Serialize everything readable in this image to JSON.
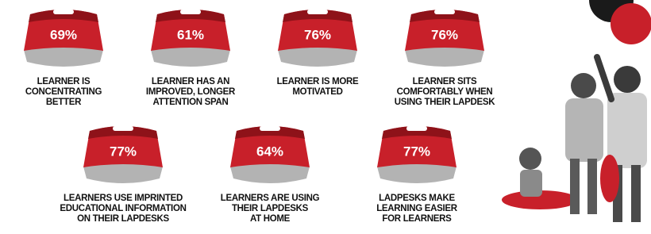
{
  "items": [
    {
      "percent": "69%",
      "caption": [
        "LEARNER IS",
        "CONCENTRATING",
        "BETTER"
      ]
    },
    {
      "percent": "61%",
      "caption": [
        "LEARNER HAS AN",
        "IMPROVED, LONGER",
        "ATTENTION SPAN"
      ]
    },
    {
      "percent": "76%",
      "caption": [
        "LEARNER IS MORE",
        "MOTIVATED"
      ]
    },
    {
      "percent": "76%",
      "caption": [
        "LEARNER SITS",
        "COMFORTABLY WHEN",
        "USING THEIR LAPDESK"
      ]
    },
    {
      "percent": "77%",
      "caption": [
        "LEARNERS USE IMPRINTED",
        "EDUCATIONAL INFORMATION",
        "ON THEIR LAPDESKS"
      ]
    },
    {
      "percent": "64%",
      "caption": [
        "LEARNERS ARE USING",
        "THEIR LAPDESKS",
        "AT HOME"
      ]
    },
    {
      "percent": "77%",
      "caption": [
        "LADPESKS MAKE",
        "LEARNING EASIER",
        "FOR LEARNERS"
      ]
    }
  ]
}
